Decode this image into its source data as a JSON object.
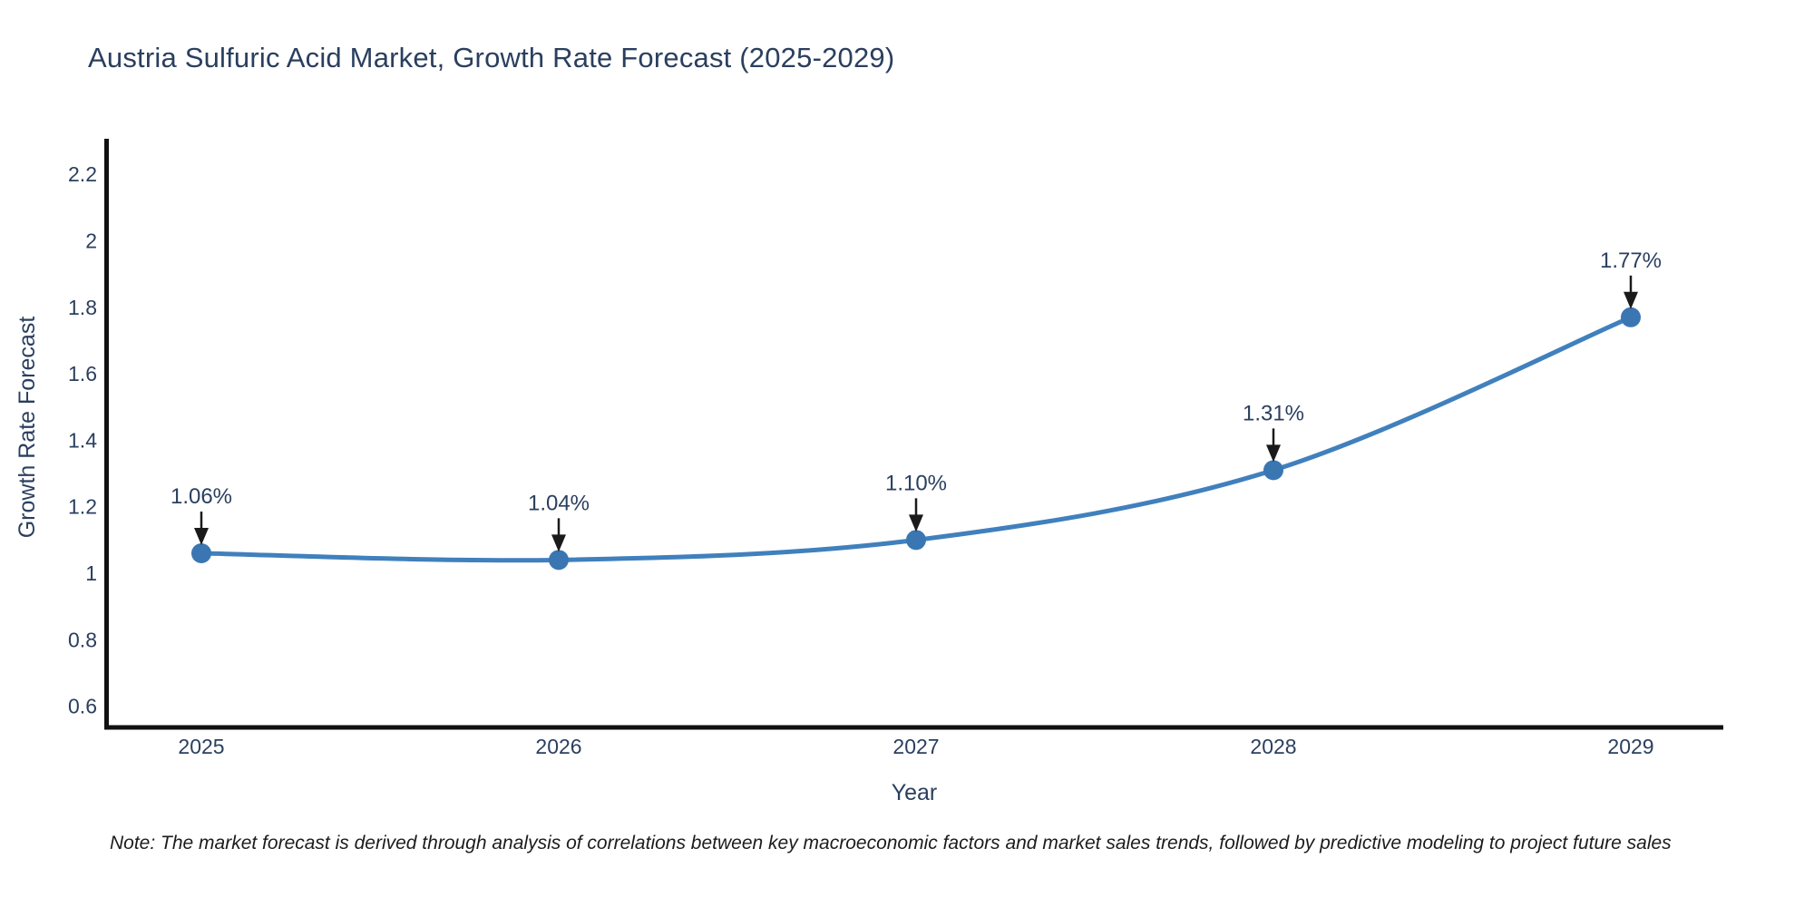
{
  "note": {
    "text": "Note: The market forecast is derived through analysis of correlations between key macroeconomic factors and market sales trends, followed by predictive modeling to project future sales"
  },
  "chart_data": {
    "type": "line",
    "title": "Austria Sulfuric Acid Market, Growth Rate Forecast (2025-2029)",
    "xlabel": "Year",
    "ylabel": "Growth Rate Forecast",
    "categories": [
      "2025",
      "2026",
      "2027",
      "2028",
      "2029"
    ],
    "values": [
      1.06,
      1.04,
      1.1,
      1.31,
      1.77
    ],
    "point_labels": [
      "1.06%",
      "1.04%",
      "1.10%",
      "1.31%",
      "1.77%"
    ],
    "yticks": [
      "2.2",
      "2",
      "1.8",
      "1.6",
      "1.4",
      "1.2",
      "1",
      "0.8",
      "0.6"
    ],
    "ylim": [
      0.54,
      2.31
    ],
    "grid": false,
    "legend": false,
    "line_shape": "spline",
    "annotations_style": "value labels with black down arrows above each point",
    "colors": {
      "line": "#4080bd",
      "marker": "#3a76b2",
      "axis": "#111111",
      "text": "#2a3f5f",
      "arrow": "#1a1a1a"
    }
  }
}
